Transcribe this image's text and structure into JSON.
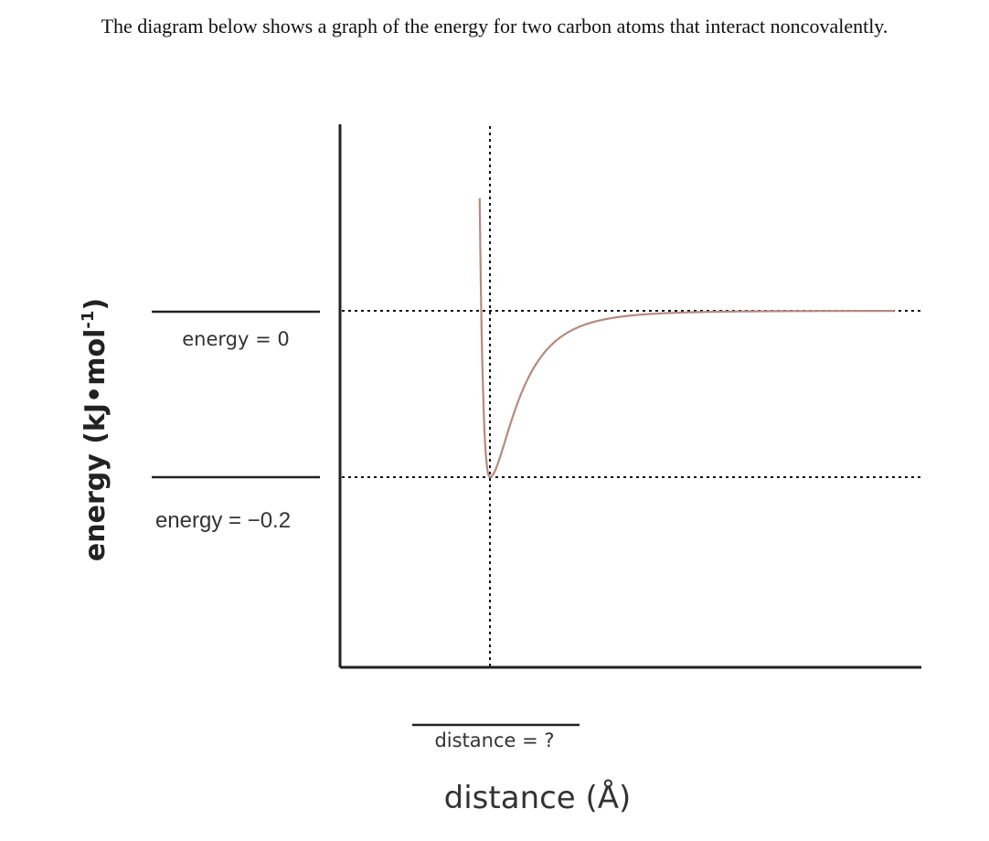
{
  "question": {
    "stem": "The diagram below shows a graph of the energy for two carbon atoms that interact noncovalently."
  },
  "chart_data": {
    "type": "line",
    "title": "",
    "xlabel": "distance (Å)",
    "ylabel": "energy (kJ•mol⁻¹)",
    "y_unit_superscript": "-1",
    "grid": false,
    "curve_color": "#b58a7e",
    "series": [
      {
        "name": "",
        "description_shape": "Lennard-Jones potential well",
        "x_rel": [
          0,
          0.4,
          0.8,
          1,
          1.5,
          2,
          3,
          4,
          5,
          6,
          7,
          8
        ],
        "note": "x values are multiples of the unlabeled equilibrium distance"
      }
    ],
    "reference_lines": [
      {
        "id": "energy_zero",
        "label": "energy = 0",
        "value": 0,
        "style": "dotted"
      },
      {
        "id": "energy_min",
        "label": "energy = −0.2",
        "value": -0.2,
        "style": "dotted"
      },
      {
        "id": "distance_min",
        "label": "distance = ?",
        "style": "dotted"
      }
    ],
    "ylim": [
      -0.35,
      0.35
    ]
  }
}
